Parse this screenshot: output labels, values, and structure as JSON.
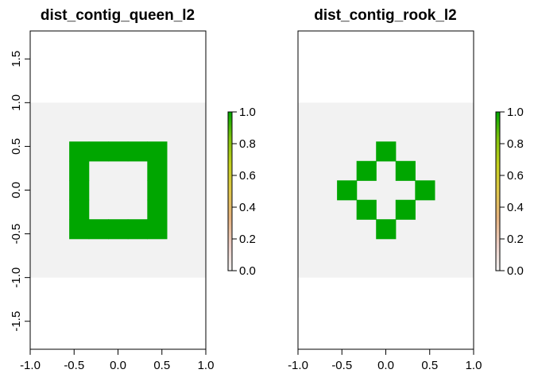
{
  "chart_data": [
    {
      "type": "heatmap",
      "title": "dist_contig_queen_l2",
      "xlim": [
        -1.0,
        1.0
      ],
      "ylim": [
        -1.0,
        1.0
      ],
      "grid": false,
      "cell_size": 0.2222,
      "background": 0,
      "filled_cells": [
        [
          -2,
          2
        ],
        [
          -1,
          2
        ],
        [
          0,
          2
        ],
        [
          1,
          2
        ],
        [
          2,
          2
        ],
        [
          -2,
          1
        ],
        [
          2,
          1
        ],
        [
          -2,
          0
        ],
        [
          2,
          0
        ],
        [
          -2,
          -1
        ],
        [
          2,
          -1
        ],
        [
          -2,
          -2
        ],
        [
          -1,
          -2
        ],
        [
          0,
          -2
        ],
        [
          1,
          -2
        ],
        [
          2,
          -2
        ]
      ],
      "filled_value": 1.0,
      "x_ticks": [
        "-1.0",
        "-0.5",
        "0.0",
        "0.5",
        "1.0"
      ],
      "y_ticks": [
        "-1.5",
        "-1.0",
        "-0.5",
        "0.0",
        "0.5",
        "1.0",
        "1.5"
      ],
      "legend": {
        "range": [
          0.0,
          1.0
        ],
        "ticks": [
          "0.0",
          "0.2",
          "0.4",
          "0.6",
          "0.8",
          "1.0"
        ]
      }
    },
    {
      "type": "heatmap",
      "title": "dist_contig_rook_l2",
      "xlim": [
        -1.0,
        1.0
      ],
      "ylim": [
        -1.0,
        1.0
      ],
      "grid": false,
      "cell_size": 0.2222,
      "background": 0,
      "filled_cells": [
        [
          0,
          2
        ],
        [
          -1,
          1
        ],
        [
          1,
          1
        ],
        [
          -2,
          0
        ],
        [
          2,
          0
        ],
        [
          -1,
          -1
        ],
        [
          1,
          -1
        ],
        [
          0,
          -2
        ]
      ],
      "filled_value": 1.0,
      "x_ticks": [
        "-1.0",
        "-0.5",
        "0.0",
        "0.5",
        "1.0"
      ],
      "y_ticks": [],
      "legend": {
        "range": [
          0.0,
          1.0
        ],
        "ticks": [
          "0.0",
          "0.2",
          "0.4",
          "0.6",
          "0.8",
          "1.0"
        ]
      }
    }
  ],
  "colors": {
    "background_cell": "#f2f2f2",
    "filled_cell": "#00a600",
    "colorbar": [
      "#f2f2f2",
      "#eecfc6",
      "#e6b37f",
      "#e0c74a",
      "#c4d01e",
      "#7fc20d",
      "#00a600"
    ]
  }
}
